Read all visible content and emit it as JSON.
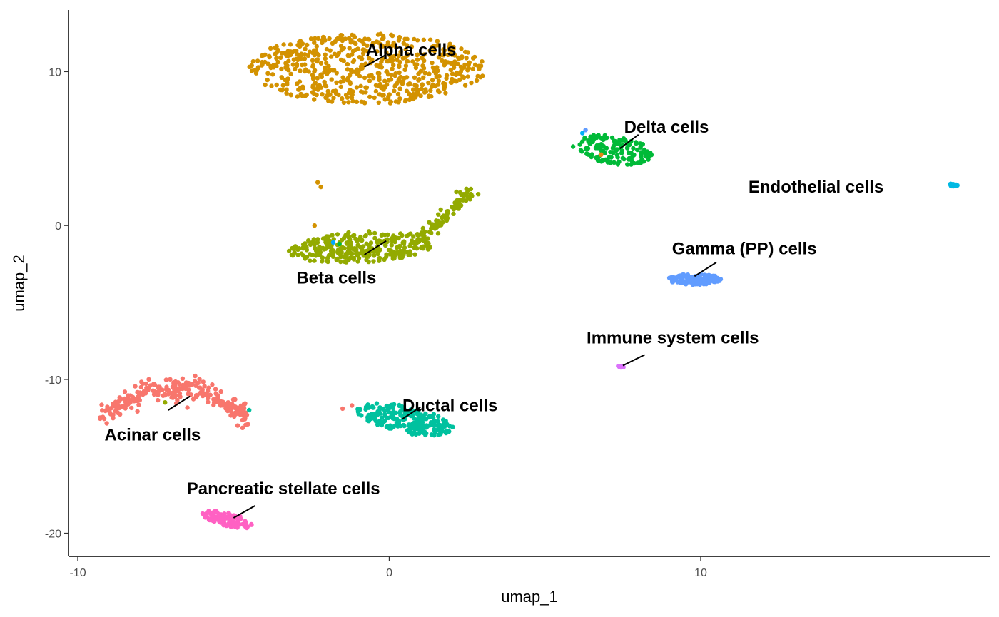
{
  "chart_data": {
    "type": "scatter",
    "title": "",
    "xlabel": "umap_1",
    "ylabel": "umap_2",
    "xlim": [
      -10.3,
      19.3
    ],
    "ylim": [
      -21.5,
      14
    ],
    "x_ticks": [
      -10,
      0,
      10
    ],
    "x_tick_labels": [
      "-10",
      "0",
      "10"
    ],
    "y_ticks": [
      -20,
      -10,
      0,
      10
    ],
    "y_tick_labels": [
      "-20",
      "-10",
      "0",
      "10"
    ],
    "grid": false,
    "legend": "none",
    "clusters": [
      {
        "name": "Alpha cells",
        "color": "#D39200",
        "shape": "ellipse",
        "center": [
          -0.7,
          10.2
        ],
        "spread": [
          3.8,
          2.3
        ],
        "angle": 0,
        "n": 600,
        "label": "Alpha cells",
        "label_pos": [
          0.7,
          11.4
        ],
        "leader": [
          [
            -0.8,
            10.3
          ],
          [
            -0.1,
            11.1
          ]
        ]
      },
      {
        "name": "Delta cells",
        "color": "#00BA38",
        "shape": "ellipse",
        "center": [
          7.2,
          4.9
        ],
        "spread": [
          1.4,
          0.85
        ],
        "angle": -25,
        "n": 140,
        "label": "Delta cells",
        "label_pos": [
          8.9,
          6.4
        ],
        "leader": [
          [
            7.4,
            5.0
          ],
          [
            8.0,
            5.9
          ]
        ]
      },
      {
        "name": "Endothelial cells",
        "color": "#00B9E3",
        "shape": "ellipse",
        "center": [
          18.1,
          2.6
        ],
        "spread": [
          0.14,
          0.12
        ],
        "angle": 0,
        "n": 14,
        "label": "Endothelial cells",
        "label_pos": [
          13.7,
          2.5
        ],
        "leader": null
      },
      {
        "name": "Beta cells",
        "color": "#93AA00",
        "shape": "ellipse",
        "center": [
          -0.9,
          -1.4
        ],
        "spread": [
          2.4,
          1.0
        ],
        "angle": 8,
        "n": 300,
        "label": "Beta cells",
        "label_pos": [
          -1.7,
          -3.4
        ],
        "leader": [
          [
            -0.8,
            -1.9
          ],
          [
            -0.1,
            -1.0
          ]
        ]
      },
      {
        "name": "Gamma (PP) cells",
        "color": "#619CFF",
        "shape": "ellipse",
        "center": [
          9.8,
          -3.5
        ],
        "spread": [
          0.85,
          0.35
        ],
        "angle": 0,
        "n": 110,
        "label": "Gamma (PP) cells",
        "label_pos": [
          11.4,
          -1.5
        ],
        "leader": [
          [
            9.8,
            -3.3
          ],
          [
            10.5,
            -2.4
          ]
        ]
      },
      {
        "name": "Immune system cells",
        "color": "#DB72FB",
        "shape": "ellipse",
        "center": [
          7.4,
          -9.2
        ],
        "spread": [
          0.12,
          0.08
        ],
        "angle": 0,
        "n": 8,
        "label": "Immune system cells",
        "label_pos": [
          9.1,
          -7.3
        ],
        "leader": [
          [
            7.5,
            -9.1
          ],
          [
            8.2,
            -8.4
          ]
        ]
      },
      {
        "name": "Acinar cells",
        "color": "#F8766D",
        "shape": "arc",
        "center": [
          -6.9,
          -12.3
        ],
        "spread": [
          2.5,
          2.5
        ],
        "angle": 0,
        "n": 260,
        "label": "Acinar cells",
        "label_pos": [
          -7.6,
          -13.6
        ],
        "leader": [
          [
            -7.1,
            -12.0
          ],
          [
            -6.4,
            -11.1
          ]
        ]
      },
      {
        "name": "Ductal cells",
        "color": "#00C19F",
        "shape": "ellipse",
        "center": [
          0.5,
          -12.6
        ],
        "spread": [
          1.7,
          0.8
        ],
        "angle": -28,
        "n": 230,
        "label": "Ductal cells",
        "label_pos": [
          1.95,
          -11.7
        ],
        "leader": [
          [
            0.4,
            -12.6
          ],
          [
            1.0,
            -11.8
          ]
        ]
      },
      {
        "name": "Pancreatic stellate cells",
        "color": "#FF61C3",
        "shape": "ellipse",
        "center": [
          -5.2,
          -19.1
        ],
        "spread": [
          0.9,
          0.4
        ],
        "angle": -30,
        "n": 110,
        "label": "Pancreatic stellate cells",
        "label_pos": [
          -3.4,
          -17.1
        ],
        "leader": [
          [
            -5.0,
            -19.0
          ],
          [
            -4.3,
            -18.2
          ]
        ]
      }
    ],
    "stray_points": [
      {
        "x": -2.3,
        "y": 2.8,
        "color": "#D39200"
      },
      {
        "x": -2.2,
        "y": 2.5,
        "color": "#D39200"
      },
      {
        "x": -2.4,
        "y": 0.0,
        "color": "#D39200"
      },
      {
        "x": -1.8,
        "y": -1.1,
        "color": "#00A9FF"
      },
      {
        "x": 6.3,
        "y": 6.2,
        "color": "#619CFF"
      },
      {
        "x": 6.2,
        "y": 6.0,
        "color": "#00B0F6"
      },
      {
        "x": 6.8,
        "y": 4.6,
        "color": "#E68613"
      },
      {
        "x": -7.2,
        "y": -11.5,
        "color": "#93AA00"
      },
      {
        "x": -4.5,
        "y": -12.0,
        "color": "#00C19F"
      },
      {
        "x": -1.5,
        "y": -11.9,
        "color": "#F8766D"
      },
      {
        "x": -1.2,
        "y": -11.7,
        "color": "#F8766D"
      },
      {
        "x": -1.6,
        "y": -1.2,
        "color": "#00BA38"
      }
    ]
  }
}
